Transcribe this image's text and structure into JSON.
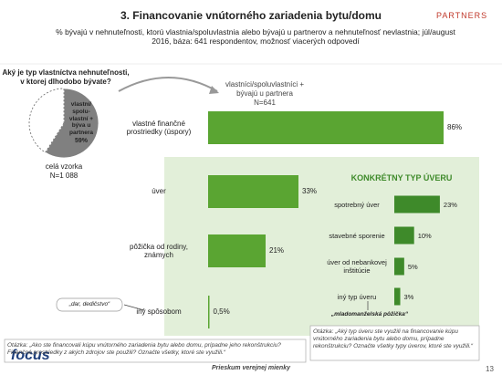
{
  "header": {
    "title": "3. Financovanie vnútorného zariadenia bytu/domu",
    "subtitle": "% bývajú v nehnuteľnosti, ktorú vlastnia/spoluvlastnia alebo bývajú u partnerov a nehnuteľnosť nevlastnia; júl/august 2016, báza: 641 respondentov, možnosť viacerých odpovedí",
    "logo": "PARTNERS"
  },
  "footer": {
    "brand": "focus",
    "text": "Prieskum verejnej mienky",
    "page": "13"
  },
  "chart_data": [
    {
      "type": "pie",
      "title": "Aký je typ vlastníctva nehnuteľnosti, v ktorej dlhodobo bývate?",
      "categories": [
        "vlastní/ spolu- vlastní + býva u partnera",
        null
      ],
      "values": [
        59,
        41
      ],
      "value_labels": [
        "59%",
        null
      ],
      "colors": [
        "#808080",
        "#ffffff"
      ],
      "note": "celá vzorka",
      "n": "N=1 088"
    },
    {
      "type": "hbar",
      "title": "vlastníci/spoluvlastníci + bývajú u partnera",
      "n": "N=641",
      "categories": [
        "vlastné finančné prostriedky (úspory)",
        "úver",
        "pôžička od rodiny, známych",
        "iný spôsobom"
      ],
      "values": [
        86,
        33,
        21,
        0.5
      ],
      "value_labels": [
        "86%",
        "33%",
        "21%",
        "0,5%"
      ],
      "color": "#5aa532",
      "xlim": [
        0,
        100
      ],
      "annotation": "„dar, dedičstvo“",
      "question": "Otázka: „Ako ste financovali kúpu vnútorného zariadenia bytu alebo domu, prípadne jeho rekonštrukciu? Finančné prostriedky z akých zdrojov ste použili? Označte všetky, ktoré ste využili.“"
    },
    {
      "type": "hbar",
      "title": "KONKRÉTNY TYP ÚVERU",
      "categories": [
        "spotrebný úver",
        "stavebné sporenie",
        "úver od nebankovej inštitúcie",
        "iný typ úveru"
      ],
      "values": [
        23,
        10,
        5,
        3
      ],
      "value_labels": [
        "23%",
        "10%",
        "5%",
        "3%"
      ],
      "color": "#3e8a2a",
      "xlim": [
        0,
        100
      ],
      "annotation": "„mladomanželská pôžička“",
      "question": "Otázka: „Aký typ úveru ste využili na financovanie kúpu vnútorného zariadenia bytu alebo domu, prípadne rekonštrukciu? Označte všetky typy úverov, ktoré ste využili.“"
    }
  ]
}
